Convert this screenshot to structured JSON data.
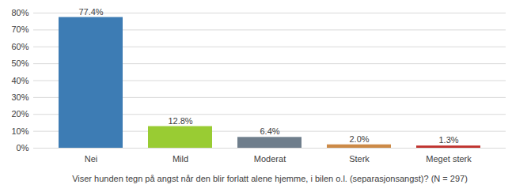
{
  "chart_data": {
    "type": "bar",
    "categories": [
      "Nei",
      "Mild",
      "Moderat",
      "Sterk",
      "Meget sterk"
    ],
    "values": [
      77.4,
      12.8,
      6.4,
      2.0,
      1.3
    ],
    "value_labels": [
      "77.4%",
      "12.8%",
      "6.4%",
      "2.0%",
      "1.3%"
    ],
    "colors": [
      "#3d7cb4",
      "#99cc33",
      "#6f7e8c",
      "#cc8a47",
      "#c0302c"
    ],
    "x_label": "Viser hunden tegn på angst når den blir forlatt alene hjemme, i bilen o.l. (separasjonsangst)? (N = 297)",
    "ylim": [
      0,
      80
    ],
    "yticks": [
      {
        "value": 0,
        "label": "0%"
      },
      {
        "value": 10,
        "label": "10%"
      },
      {
        "value": 20,
        "label": "20%"
      },
      {
        "value": 30,
        "label": "30%"
      },
      {
        "value": 40,
        "label": "40%"
      },
      {
        "value": 50,
        "label": "50%"
      },
      {
        "value": 60,
        "label": "60%"
      },
      {
        "value": 70,
        "label": "70%"
      },
      {
        "value": 80,
        "label": "80%"
      }
    ],
    "grid": true,
    "data_labels": true
  }
}
